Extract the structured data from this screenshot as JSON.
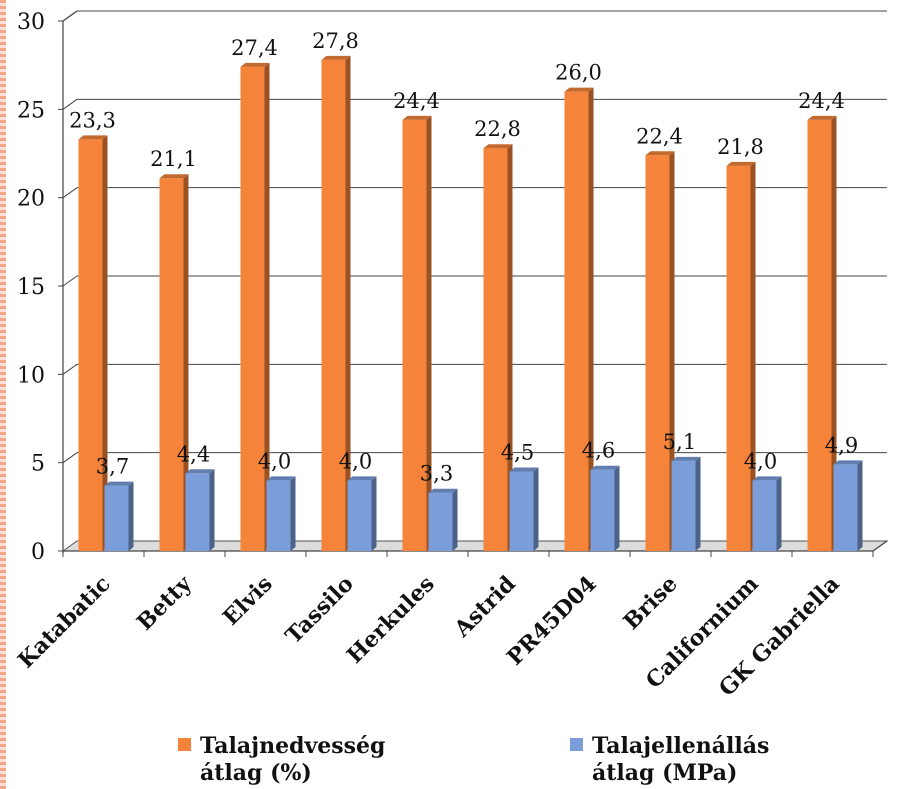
{
  "chart_data": {
    "type": "bar",
    "categories": [
      "Katabatic",
      "Betty",
      "Elvis",
      "Tassilo",
      "Herkules",
      "Astrid",
      "PR45D04",
      "Brise",
      "Californium",
      "GK Gabriella"
    ],
    "series": [
      {
        "name": "Talajnedvesség átlag (%)",
        "values": [
          23.3,
          21.1,
          27.4,
          27.8,
          24.4,
          22.8,
          26.0,
          22.4,
          21.8,
          24.4
        ],
        "labels": [
          "23,3",
          "21,1",
          "27,4",
          "27,8",
          "24,4",
          "22,8",
          "26,0",
          "22,4",
          "21,8",
          "24,4"
        ],
        "color": "#f5843a"
      },
      {
        "name": "Talajellenállás átlag (MPa)",
        "values": [
          3.7,
          4.4,
          4.0,
          4.0,
          3.3,
          4.5,
          4.6,
          5.1,
          4.0,
          4.9
        ],
        "labels": [
          "3,7",
          "4,4",
          "4,0",
          "4,0",
          "3,3",
          "4,5",
          "4,6",
          "5,1",
          "4,0",
          "4,9"
        ],
        "color": "#7b9edb"
      }
    ],
    "ylim": [
      0,
      30
    ],
    "yticks": [
      0,
      5,
      10,
      15,
      20,
      25,
      30
    ],
    "grid": true,
    "legend_position": "bottom",
    "title": "",
    "xlabel": "",
    "ylabel": ""
  },
  "legend": {
    "series1_line1": "Talajnedvesség",
    "series1_line2": "átlag (%)",
    "series2_line1": "Talajellenállás",
    "series2_line2": "átlag (MPa)"
  }
}
